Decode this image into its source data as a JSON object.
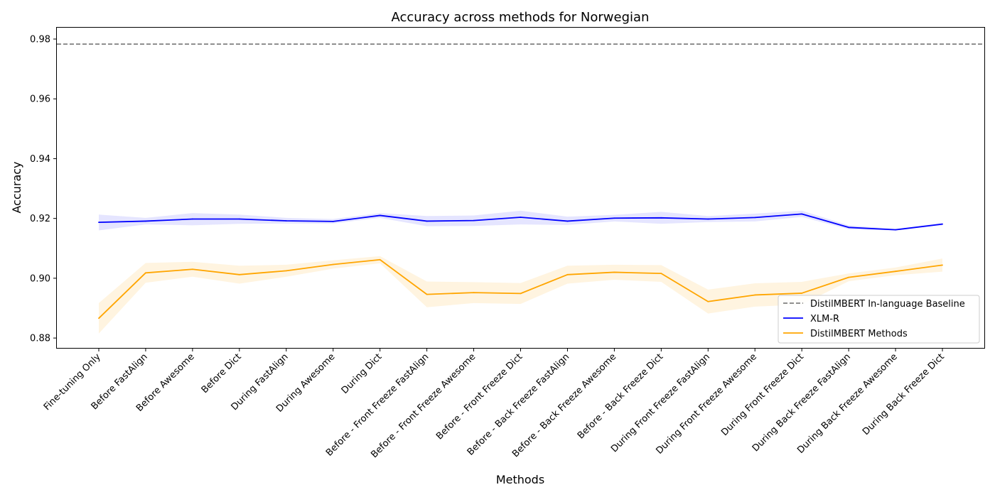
{
  "chart_data": {
    "type": "line",
    "title": "Accuracy across methods for Norwegian",
    "xlabel": "Methods",
    "ylabel": "Accuracy",
    "ylim": [
      0.8767,
      0.9838
    ],
    "yticks": [
      0.88,
      0.9,
      0.92,
      0.94,
      0.96,
      0.98
    ],
    "ytick_labels": [
      "0.88",
      "0.90",
      "0.92",
      "0.94",
      "0.96",
      "0.98"
    ],
    "grid": false,
    "legend_position": "lower-right",
    "categories": [
      "Fine-tuning Only",
      "Before FastAlign",
      "Before Awesome",
      "Before Dict",
      "During FastAlign",
      "During Awesome",
      "During Dict",
      "Before - Front Freeze FastAlign",
      "Before - Front Freeze Awesome",
      "Before - Front Freeze Dict",
      "Before - Back Freeze FastAlign",
      "Before - Back Freeze Awesome",
      "Before - Back Freeze Dict",
      "During Front Freeze FastAlign",
      "During Front Freeze Awesome",
      "During Front Freeze Dict",
      "During Back Freeze FastAlign",
      "During Back Freeze Awesome",
      "During Back Freeze Dict"
    ],
    "baseline": {
      "name": "DistilMBERT In-language Baseline",
      "value": 0.9783,
      "color": "#808080",
      "style": "dashed"
    },
    "series": [
      {
        "name": "XLM-R",
        "color": "#0000ff",
        "values": [
          0.9187,
          0.9191,
          0.9198,
          0.9198,
          0.9192,
          0.919,
          0.921,
          0.9191,
          0.9193,
          0.9204,
          0.9191,
          0.9201,
          0.9202,
          0.9198,
          0.9203,
          0.9215,
          0.917,
          0.9162,
          0.9181
        ],
        "lower": [
          0.916,
          0.918,
          0.9177,
          0.9182,
          0.9183,
          0.9183,
          0.9202,
          0.9174,
          0.9175,
          0.918,
          0.9178,
          0.919,
          0.9182,
          0.9188,
          0.919,
          0.9205,
          0.9164,
          0.916,
          0.9177
        ],
        "upper": [
          0.9213,
          0.9202,
          0.9218,
          0.9213,
          0.9202,
          0.9198,
          0.9218,
          0.9208,
          0.921,
          0.9226,
          0.9206,
          0.9212,
          0.9222,
          0.9208,
          0.9216,
          0.9226,
          0.9177,
          0.9165,
          0.9185
        ]
      },
      {
        "name": "DistilMBERT Methods",
        "color": "#ffa500",
        "values": [
          0.8866,
          0.9018,
          0.903,
          0.9012,
          0.9025,
          0.9046,
          0.9062,
          0.8946,
          0.8952,
          0.8949,
          0.9012,
          0.902,
          0.9016,
          0.8922,
          0.8944,
          0.895,
          0.9003,
          0.9023,
          0.9044
        ],
        "lower": [
          0.8815,
          0.8985,
          0.9005,
          0.8982,
          0.9005,
          0.9032,
          0.905,
          0.8903,
          0.8917,
          0.8914,
          0.8982,
          0.8995,
          0.8988,
          0.8882,
          0.8905,
          0.8912,
          0.899,
          0.901,
          0.9022
        ],
        "upper": [
          0.8917,
          0.9051,
          0.9055,
          0.9042,
          0.9045,
          0.906,
          0.9074,
          0.8989,
          0.8987,
          0.8984,
          0.9042,
          0.9045,
          0.9044,
          0.8962,
          0.8983,
          0.8988,
          0.9016,
          0.9036,
          0.9066
        ]
      }
    ]
  }
}
